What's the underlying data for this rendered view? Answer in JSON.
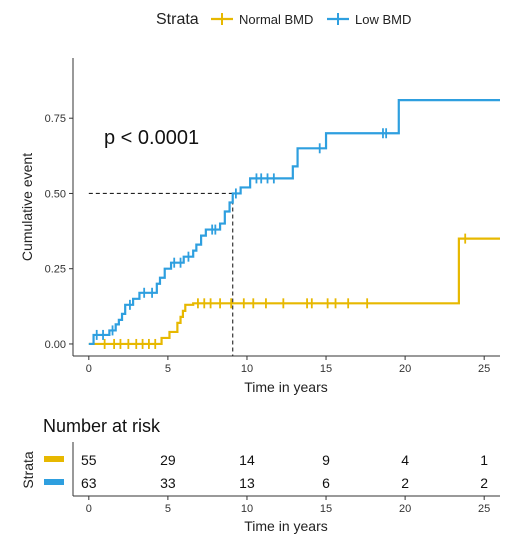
{
  "colors": {
    "normal": "#E7B800",
    "low": "#2E9FDF",
    "axis": "#333333",
    "text": "#222222"
  },
  "legend": {
    "title": "Strata",
    "position": "top"
  },
  "chart_data": [
    {
      "type": "line",
      "subtype": "step-cumulative-incidence",
      "xlabel": "Time in years",
      "ylabel": "Cumulative event",
      "annotation": "p < 0.0001",
      "xlim": [
        -1,
        26
      ],
      "ylim": [
        -0.04,
        0.95
      ],
      "x_ticks": [
        0,
        5,
        10,
        15,
        20,
        25
      ],
      "y_ticks": [
        0.0,
        0.25,
        0.5,
        0.75
      ],
      "y_tick_labels": [
        "0.00",
        "0.25",
        "0.50",
        "0.75"
      ],
      "median_guide": {
        "y": 0.5,
        "x": 9.1
      },
      "series": [
        {
          "name": "Normal BMD",
          "key": "normal",
          "steps": [
            [
              0,
              0.0
            ],
            [
              4.6,
              0.02
            ],
            [
              5.1,
              0.04
            ],
            [
              5.6,
              0.07
            ],
            [
              5.8,
              0.09
            ],
            [
              5.95,
              0.11
            ],
            [
              6.1,
              0.13
            ],
            [
              6.6,
              0.135
            ],
            [
              23.4,
              0.35
            ],
            [
              26,
              0.35
            ]
          ],
          "censor_times": [
            1.0,
            1.6,
            2.0,
            2.5,
            3.0,
            3.4,
            3.8,
            4.2,
            6.9,
            7.3,
            7.7,
            8.3,
            9.0,
            9.8,
            10.4,
            11.2,
            12.3,
            13.8,
            14.1,
            15.1,
            15.6,
            16.4,
            17.6,
            23.8
          ]
        },
        {
          "name": "Low BMD",
          "key": "low",
          "steps": [
            [
              0,
              0.0
            ],
            [
              0.3,
              0.03
            ],
            [
              1.3,
              0.045
            ],
            [
              1.7,
              0.065
            ],
            [
              1.9,
              0.08
            ],
            [
              2.1,
              0.1
            ],
            [
              2.3,
              0.13
            ],
            [
              2.8,
              0.15
            ],
            [
              3.2,
              0.17
            ],
            [
              4.3,
              0.2
            ],
            [
              4.5,
              0.22
            ],
            [
              4.8,
              0.25
            ],
            [
              5.2,
              0.27
            ],
            [
              6.0,
              0.29
            ],
            [
              6.6,
              0.31
            ],
            [
              6.8,
              0.33
            ],
            [
              7.1,
              0.36
            ],
            [
              7.4,
              0.38
            ],
            [
              8.3,
              0.4
            ],
            [
              8.6,
              0.44
            ],
            [
              8.9,
              0.47
            ],
            [
              9.1,
              0.5
            ],
            [
              9.6,
              0.52
            ],
            [
              10.2,
              0.55
            ],
            [
              12.9,
              0.59
            ],
            [
              13.2,
              0.65
            ],
            [
              15.0,
              0.7
            ],
            [
              16.1,
              0.7
            ],
            [
              19.6,
              0.81
            ],
            [
              26,
              0.81
            ]
          ],
          "censor_times": [
            0.5,
            0.9,
            1.5,
            2.6,
            3.5,
            4.0,
            5.4,
            5.8,
            6.3,
            7.8,
            8.0,
            9.3,
            10.6,
            10.9,
            11.3,
            11.7,
            14.6,
            18.6,
            18.8
          ]
        }
      ]
    },
    {
      "type": "table",
      "title": "Number at risk",
      "ylabel": "Strata",
      "xlabel": "Time in years",
      "x_ticks": [
        0,
        5,
        10,
        15,
        20,
        25
      ],
      "rows": [
        {
          "key": "normal",
          "values": [
            "55",
            "29",
            "14",
            "9",
            "4",
            "1"
          ]
        },
        {
          "key": "low",
          "values": [
            "63",
            "33",
            "13",
            "6",
            "2",
            "2"
          ]
        }
      ]
    }
  ]
}
